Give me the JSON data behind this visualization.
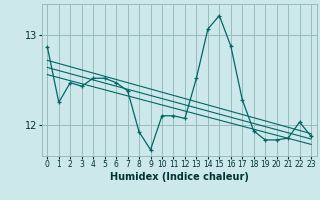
{
  "xlabel": "Humidex (Indice chaleur)",
  "background_color": "#cce8ea",
  "grid_color": "#99bbbb",
  "line_color": "#006666",
  "xlim": [
    -0.5,
    23.5
  ],
  "ylim": [
    11.65,
    13.35
  ],
  "yticks": [
    12,
    13
  ],
  "xticks": [
    0,
    1,
    2,
    3,
    4,
    5,
    6,
    7,
    8,
    9,
    10,
    11,
    12,
    13,
    14,
    15,
    16,
    17,
    18,
    19,
    20,
    21,
    22,
    23
  ],
  "main_x": [
    0,
    1,
    2,
    3,
    4,
    5,
    6,
    7,
    8,
    9,
    10,
    11,
    12,
    13,
    14,
    15,
    16,
    17,
    18,
    19,
    20,
    21,
    22,
    23
  ],
  "main_y": [
    12.87,
    12.25,
    12.47,
    12.43,
    12.52,
    12.52,
    12.47,
    12.38,
    11.92,
    11.72,
    12.1,
    12.1,
    12.07,
    12.52,
    13.07,
    13.22,
    12.88,
    12.28,
    11.93,
    11.83,
    11.83,
    11.85,
    12.03,
    11.87
  ],
  "trend_lines": [
    {
      "x": [
        0,
        23
      ],
      "y": [
        12.72,
        11.9
      ]
    },
    {
      "x": [
        0,
        23
      ],
      "y": [
        12.64,
        11.84
      ]
    },
    {
      "x": [
        0,
        23
      ],
      "y": [
        12.56,
        11.78
      ]
    }
  ]
}
